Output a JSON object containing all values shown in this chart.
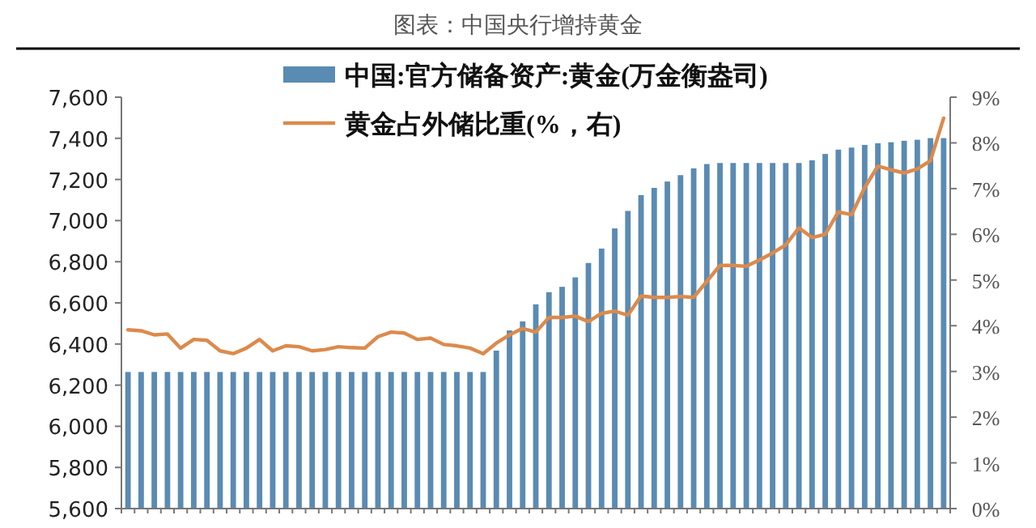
{
  "chart_data": {
    "type": "bar",
    "title": "图表：中国央行增持黄金",
    "categories": [
      null,
      null,
      null,
      null,
      null,
      null,
      null,
      null,
      null,
      null,
      null,
      null,
      null,
      null,
      null,
      null,
      null,
      null,
      null,
      null,
      null,
      null,
      null,
      null,
      null,
      null,
      null,
      null,
      null,
      null,
      null,
      null,
      null,
      null,
      null,
      null,
      null,
      null,
      null,
      null,
      null,
      null,
      null,
      null,
      null,
      null,
      null,
      null,
      null,
      null,
      null,
      null,
      null,
      null,
      null,
      null,
      null,
      null,
      null,
      null,
      null,
      null,
      null
    ],
    "series": [
      {
        "name": "中国:官方储备资产:黄金(万金衡盎司)",
        "color": "#5a8bb3",
        "values": [
          6264,
          6264,
          6264,
          6264,
          6264,
          6264,
          6264,
          6264,
          6264,
          6264,
          6264,
          6264,
          6264,
          6264,
          6264,
          6264,
          6264,
          6264,
          6264,
          6264,
          6264,
          6264,
          6264,
          6264,
          6264,
          6264,
          6264,
          6264,
          6368,
          6466,
          6510,
          6593,
          6652,
          6678,
          6724,
          6794,
          6864,
          6962,
          7047,
          7124,
          7159,
          7190,
          7221,
          7254,
          7275,
          7280,
          7280,
          7280,
          7280,
          7280,
          7280,
          7280,
          7293,
          7324,
          7345,
          7355,
          7368,
          7376,
          7381,
          7388,
          7393,
          7401,
          7401
        ]
      },
      {
        "name": "黄金占外储比重(%，右)",
        "type": "line",
        "axis": "y2",
        "color": "#dc8a4c",
        "values": [
          3.91,
          3.89,
          3.8,
          3.82,
          3.51,
          3.7,
          3.68,
          3.45,
          3.39,
          3.51,
          3.7,
          3.45,
          3.56,
          3.54,
          3.45,
          3.48,
          3.54,
          3.52,
          3.51,
          3.76,
          3.86,
          3.84,
          3.7,
          3.73,
          3.59,
          3.56,
          3.51,
          3.39,
          3.62,
          3.8,
          3.94,
          3.86,
          4.18,
          4.18,
          4.21,
          4.09,
          4.27,
          4.32,
          4.23,
          4.65,
          4.62,
          4.62,
          4.64,
          4.62,
          4.97,
          5.32,
          5.32,
          5.3,
          5.44,
          5.59,
          5.77,
          6.14,
          5.93,
          6.0,
          6.49,
          6.43,
          7.02,
          7.49,
          7.41,
          7.34,
          7.43,
          7.61,
          8.54
        ]
      }
    ],
    "ylim": [
      5600,
      7600
    ],
    "yticks": [
      {
        "value": 5600,
        "label": "5,600"
      },
      {
        "value": 5800,
        "label": "5,800"
      },
      {
        "value": 6000,
        "label": "6,000"
      },
      {
        "value": 6200,
        "label": "6,200"
      },
      {
        "value": 6400,
        "label": "6,400"
      },
      {
        "value": 6600,
        "label": "6,600"
      },
      {
        "value": 6800,
        "label": "6,800"
      },
      {
        "value": 7000,
        "label": "7,000"
      },
      {
        "value": 7200,
        "label": "7,200"
      },
      {
        "value": 7400,
        "label": "7,400"
      },
      {
        "value": 7600,
        "label": "7,600"
      }
    ],
    "y2lim": [
      0,
      9
    ],
    "y2ticks": [
      {
        "value": 0,
        "label": "0%"
      },
      {
        "value": 1,
        "label": "1%"
      },
      {
        "value": 2,
        "label": "2%"
      },
      {
        "value": 3,
        "label": "3%"
      },
      {
        "value": 4,
        "label": "4%"
      },
      {
        "value": 5,
        "label": "5%"
      },
      {
        "value": 6,
        "label": "6%"
      },
      {
        "value": 7,
        "label": "7%"
      },
      {
        "value": 8,
        "label": "8%"
      },
      {
        "value": 9,
        "label": "9%"
      }
    ],
    "legend": "top",
    "grid": false
  }
}
